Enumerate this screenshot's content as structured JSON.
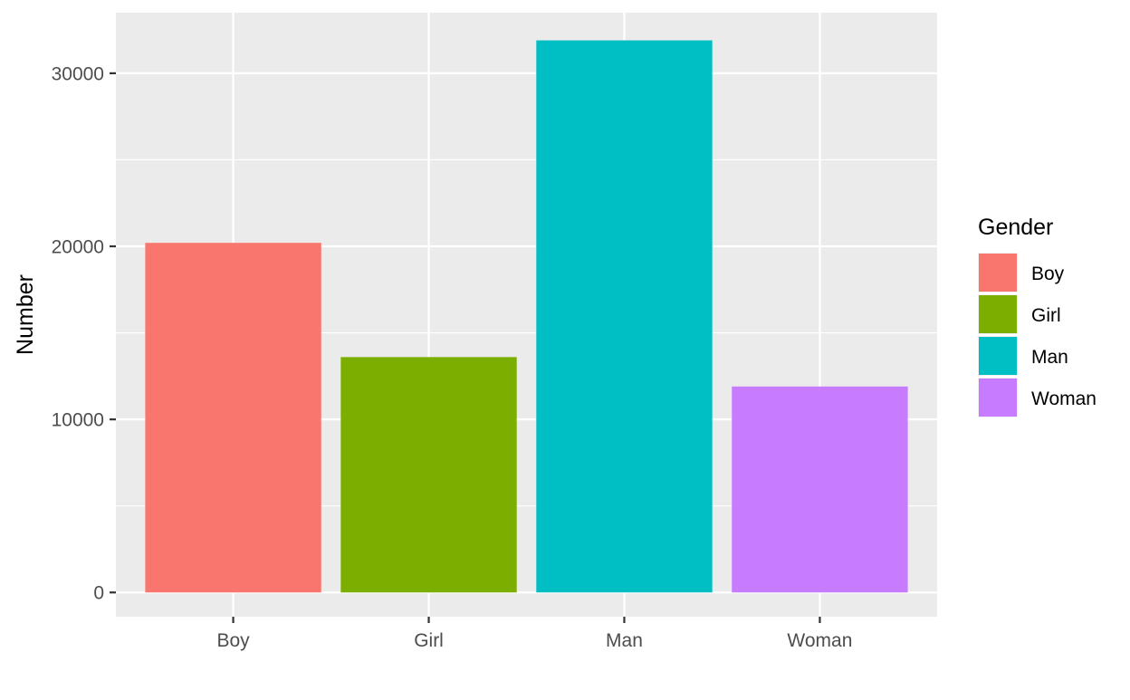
{
  "chart_data": {
    "type": "bar",
    "categories": [
      "Boy",
      "Girl",
      "Man",
      "Woman"
    ],
    "values": [
      20200,
      13600,
      31900,
      11900
    ],
    "xlabel": "",
    "ylabel": "Number",
    "ylim": [
      -1400,
      33500
    ],
    "yticks": [
      0,
      10000,
      20000,
      30000
    ],
    "ytick_labels": [
      "0",
      "10000",
      "20000",
      "30000"
    ],
    "grid": true,
    "legend": {
      "title": "Gender",
      "position": "right",
      "entries": [
        "Boy",
        "Girl",
        "Man",
        "Woman"
      ]
    },
    "colors": {
      "Boy": "#F8766D",
      "Girl": "#7CAE00",
      "Man": "#00BFC4",
      "Woman": "#C77CFF"
    },
    "panel_background": "#EBEBEB",
    "grid_color": "#FFFFFF"
  }
}
